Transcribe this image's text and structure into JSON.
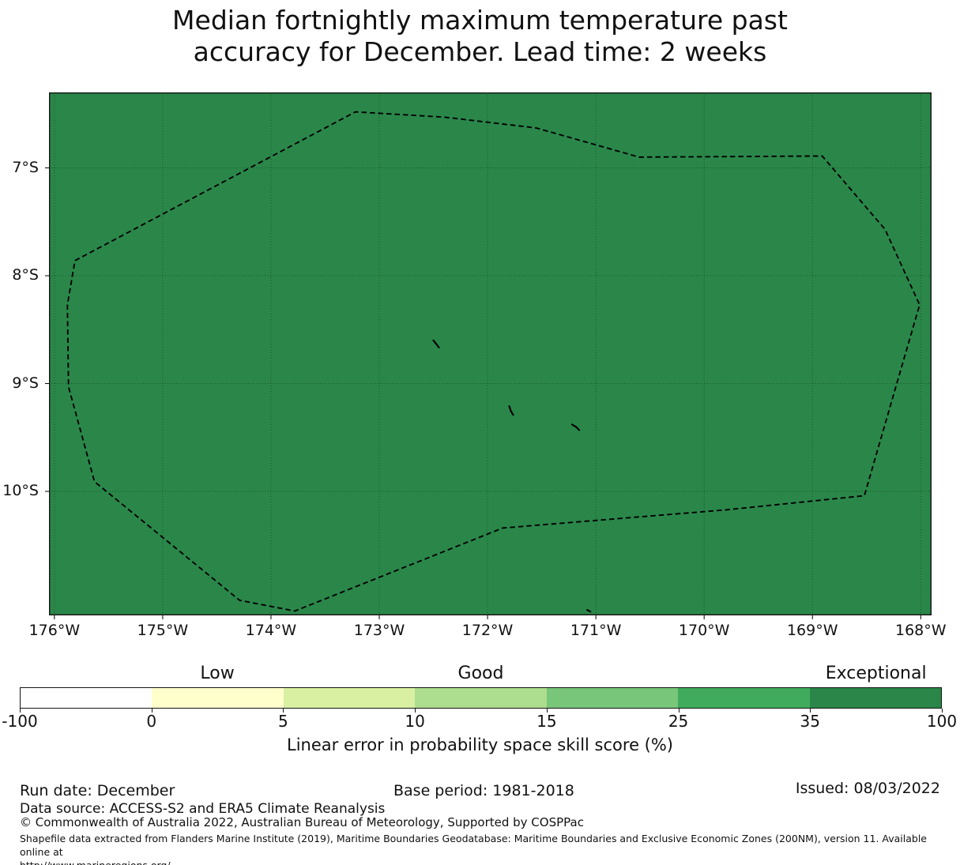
{
  "title": "Median fortnightly maximum temperature past\naccuracy for December. Lead time: 2 weeks",
  "chart_data": {
    "type": "heatmap",
    "title": "Median fortnightly maximum temperature past accuracy for December. Lead time: 2 weeks",
    "xlabel": "",
    "ylabel": "",
    "grid": true,
    "xlim": [
      -176.05,
      -167.9
    ],
    "ylim": [
      -11.15,
      -6.3
    ],
    "xticks": [
      {
        "value": -176,
        "label": "176°W"
      },
      {
        "value": -175,
        "label": "175°W"
      },
      {
        "value": -174,
        "label": "174°W"
      },
      {
        "value": -173,
        "label": "173°W"
      },
      {
        "value": -172,
        "label": "172°W"
      },
      {
        "value": -171,
        "label": "171°W"
      },
      {
        "value": -170,
        "label": "170°W"
      },
      {
        "value": -169,
        "label": "169°W"
      },
      {
        "value": -168,
        "label": "168°W"
      }
    ],
    "yticks": [
      {
        "value": -7,
        "label": "7°S"
      },
      {
        "value": -8,
        "label": "8°S"
      },
      {
        "value": -9,
        "label": "9°S"
      },
      {
        "value": -10,
        "label": "10°S"
      }
    ],
    "region_fill_bin": "35 to 100 (Exceptional)",
    "fill_color": "#2a8749",
    "boundary": [
      [
        -175.81,
        -7.86
      ],
      [
        -173.22,
        -6.48
      ],
      [
        -172.39,
        -6.53
      ],
      [
        -171.55,
        -6.63
      ],
      [
        -170.6,
        -6.9
      ],
      [
        -168.91,
        -6.89
      ],
      [
        -168.33,
        -7.57
      ],
      [
        -168.01,
        -8.27
      ],
      [
        -168.23,
        -9.03
      ],
      [
        -168.52,
        -10.04
      ],
      [
        -169.78,
        -10.17
      ],
      [
        -171.86,
        -10.34
      ],
      [
        -173.78,
        -11.11
      ],
      [
        -174.29,
        -11.01
      ],
      [
        -175.63,
        -9.91
      ],
      [
        -175.87,
        -9.03
      ],
      [
        -175.88,
        -8.27
      ]
    ],
    "islands": [
      {
        "lon": -172.5,
        "lat": -8.6,
        "shape": [
          [
            0,
            0
          ],
          [
            4,
            5
          ],
          [
            7,
            9
          ]
        ]
      },
      {
        "lon": -171.8,
        "lat": -9.21,
        "shape": [
          [
            0,
            0
          ],
          [
            2,
            6
          ],
          [
            5,
            11
          ]
        ]
      },
      {
        "lon": -171.22,
        "lat": -9.38,
        "shape": [
          [
            0,
            0
          ],
          [
            5,
            3
          ],
          [
            9,
            7
          ]
        ]
      },
      {
        "lon": -171.08,
        "lat": -11.1,
        "shape": [
          [
            0,
            0
          ],
          [
            4,
            2
          ]
        ]
      }
    ],
    "colorbar": {
      "xlabel": "Linear error in probability space skill score (%)",
      "boundaries": [
        -100,
        0,
        5,
        10,
        15,
        25,
        35,
        100
      ],
      "tick_labels": [
        "-100",
        "0",
        "5",
        "10",
        "15",
        "25",
        "35",
        "100"
      ],
      "colors": [
        "#ffffff",
        "#ffffcc",
        "#d9f0a3",
        "#addd8e",
        "#78c679",
        "#41ab5d",
        "#2a8749"
      ],
      "category_labels": [
        {
          "label": "Low",
          "segment_index": 1
        },
        {
          "label": "Good",
          "segment_index": 3
        },
        {
          "label": "Exceptional",
          "segment_index": 6
        }
      ]
    }
  },
  "footer": {
    "run_date": "Run date: December",
    "base_period": "Base period: 1981-2018",
    "issued": "Issued: 08/03/2022",
    "data_source": "Data source: ACCESS-S2 and ERA5 Climate Reanalysis",
    "copyright": "© Commonwealth of Australia 2022, Australian Bureau of Meteorology, Supported by COSPPac",
    "shapefile_note": "Shapefile data extracted from Flanders Marine Institute (2019), Maritime Boundaries Geodatabase: Maritime Boundaries and Exclusive Economic Zones (200NM), version 11. Available online at\nhttp://www.marineregions.org/."
  }
}
